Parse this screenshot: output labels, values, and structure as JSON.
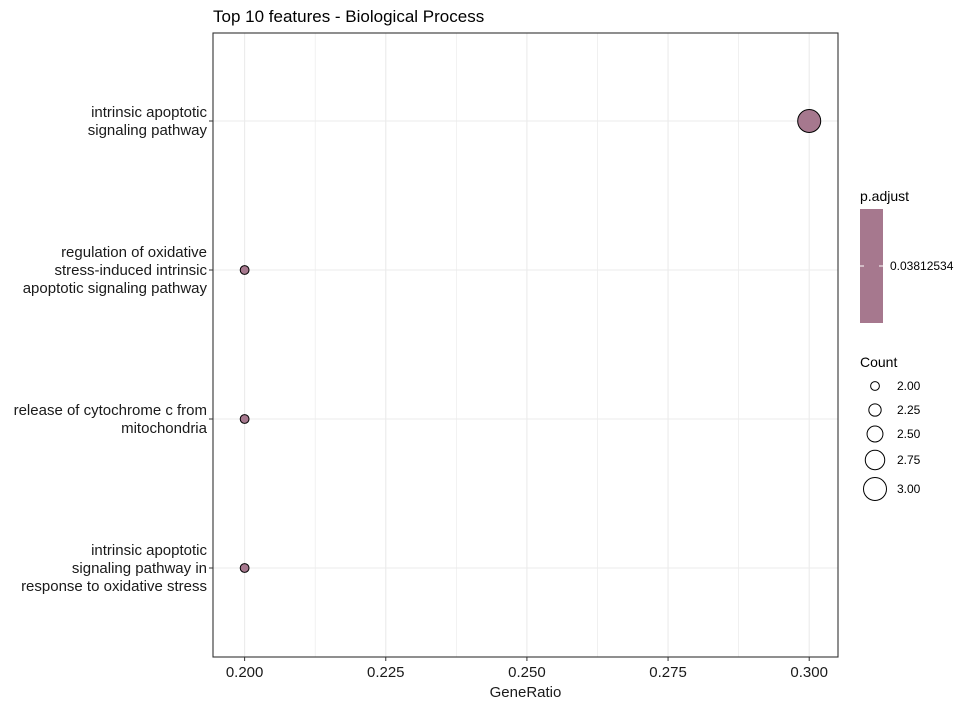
{
  "chart_data": {
    "type": "scatter",
    "title": "Top 10 features - Biological Process",
    "xlabel": "GeneRatio",
    "ylabel": "",
    "xlim": [
      0.1944,
      0.3051
    ],
    "x_ticks": [
      0.2,
      0.225,
      0.25,
      0.275,
      0.3
    ],
    "x_tick_labels": [
      "0.200",
      "0.225",
      "0.250",
      "0.275",
      "0.300"
    ],
    "categories": [
      [
        "intrinsic apoptotic",
        "signaling pathway"
      ],
      [
        "regulation of oxidative",
        "stress-induced intrinsic",
        "apoptotic signaling pathway"
      ],
      [
        "release of cytochrome c from",
        "mitochondria"
      ],
      [
        "intrinsic apoptotic",
        "signaling pathway in",
        "response to oxidative stress"
      ]
    ],
    "points": [
      {
        "x": 0.3,
        "count": 3,
        "p_adjust": 0.03812534
      },
      {
        "x": 0.2,
        "count": 2,
        "p_adjust": 0.03812534
      },
      {
        "x": 0.2,
        "count": 2,
        "p_adjust": 0.03812534
      },
      {
        "x": 0.2,
        "count": 2,
        "p_adjust": 0.03812534
      }
    ],
    "grid": true,
    "point_color": "#A6788E",
    "legend_placement": "right",
    "legend_color": {
      "title": "p.adjust",
      "label": "0.03812534",
      "color": "#A6788E"
    },
    "legend_size": {
      "title": "Count",
      "values": [
        2.0,
        2.25,
        2.5,
        2.75,
        3.0
      ],
      "labels": [
        "2.00",
        "2.25",
        "2.50",
        "2.75",
        "3.00"
      ]
    }
  }
}
